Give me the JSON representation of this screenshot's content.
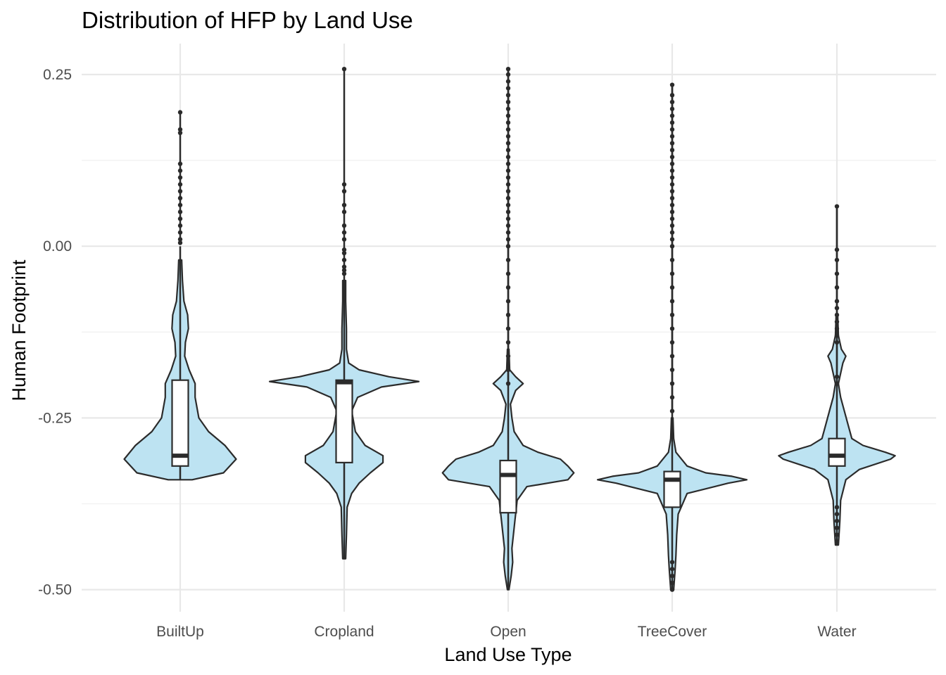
{
  "chart_data": {
    "type": "violin",
    "title": "Distribution of HFP by Land Use",
    "xlabel": "Land Use Type",
    "ylabel": "Human Footprint",
    "categories": [
      "BuiltUp",
      "Cropland",
      "Open",
      "TreeCover",
      "Water"
    ],
    "ylim": [
      -0.53,
      0.3
    ],
    "y_ticks": [
      0.25,
      0.0,
      -0.25,
      -0.5
    ],
    "y_tick_labels": [
      "0.25",
      "0.00",
      "-0.25",
      "-0.50"
    ],
    "grid": true,
    "colors": {
      "fill": "#bde3f2",
      "outline": "#2b2b2b",
      "box_fill": "#ffffff",
      "grid_major": "#e8e8e8",
      "grid_minor": "#f2f2f2"
    },
    "series": [
      {
        "category": "BuiltUp",
        "min": -0.34,
        "q1": -0.32,
        "median": -0.305,
        "q3": -0.195,
        "max": 0.195,
        "upper_whisker": 0.0,
        "outliers": [
          0.195,
          0.17,
          0.165,
          0.12,
          0.11,
          0.1,
          0.09,
          0.08,
          0.07,
          0.06,
          0.05,
          0.04,
          0.03,
          0.02,
          0.01,
          0.005
        ],
        "density": [
          [
            -0.34,
            0.16
          ],
          [
            -0.33,
            0.58
          ],
          [
            -0.31,
            0.75
          ],
          [
            -0.29,
            0.6
          ],
          [
            -0.27,
            0.38
          ],
          [
            -0.25,
            0.25
          ],
          [
            -0.22,
            0.2
          ],
          [
            -0.2,
            0.2
          ],
          [
            -0.18,
            0.12
          ],
          [
            -0.16,
            0.06
          ],
          [
            -0.14,
            0.07
          ],
          [
            -0.12,
            0.11
          ],
          [
            -0.1,
            0.1
          ],
          [
            -0.08,
            0.05
          ],
          [
            -0.05,
            0.03
          ],
          [
            -0.02,
            0.02
          ]
        ]
      },
      {
        "category": "Cropland",
        "min": -0.455,
        "q1": -0.315,
        "median": -0.198,
        "q3": -0.195,
        "max": 0.258,
        "upper_whisker": -0.03,
        "outliers": [
          0.258,
          0.09,
          0.08,
          0.06,
          0.05,
          0.03,
          0.02,
          0.01,
          -0.005,
          -0.01,
          -0.02,
          -0.03,
          -0.035,
          -0.04
        ],
        "density": [
          [
            -0.455,
            0.02
          ],
          [
            -0.42,
            0.03
          ],
          [
            -0.38,
            0.04
          ],
          [
            -0.36,
            0.1
          ],
          [
            -0.345,
            0.2
          ],
          [
            -0.33,
            0.35
          ],
          [
            -0.315,
            0.52
          ],
          [
            -0.305,
            0.52
          ],
          [
            -0.29,
            0.28
          ],
          [
            -0.27,
            0.15
          ],
          [
            -0.24,
            0.1
          ],
          [
            -0.22,
            0.18
          ],
          [
            -0.205,
            0.5
          ],
          [
            -0.197,
            1.0
          ],
          [
            -0.19,
            0.6
          ],
          [
            -0.18,
            0.2
          ],
          [
            -0.17,
            0.06
          ],
          [
            -0.15,
            0.03
          ],
          [
            -0.12,
            0.03
          ],
          [
            -0.08,
            0.02
          ],
          [
            -0.05,
            0.02
          ]
        ]
      },
      {
        "category": "Open",
        "min": -0.5,
        "q1": -0.388,
        "median": -0.333,
        "q3": -0.312,
        "max": 0.258,
        "upper_whisker": 0.258,
        "outliers": [
          0.258,
          0.25,
          0.24,
          0.23,
          0.22,
          0.21,
          0.2,
          0.19,
          0.18,
          0.17,
          0.16,
          0.15,
          0.14,
          0.13,
          0.12,
          0.11,
          0.1,
          0.09,
          0.08,
          0.07,
          0.06,
          0.05,
          0.04,
          0.03,
          0.02,
          0.01,
          0.0,
          -0.02,
          -0.04,
          -0.06,
          -0.08,
          -0.1,
          -0.12,
          -0.14,
          -0.16,
          -0.18,
          -0.2
        ],
        "density": [
          [
            -0.5,
            0.01
          ],
          [
            -0.48,
            0.04
          ],
          [
            -0.46,
            0.06
          ],
          [
            -0.44,
            0.05
          ],
          [
            -0.42,
            0.07
          ],
          [
            -0.4,
            0.09
          ],
          [
            -0.37,
            0.12
          ],
          [
            -0.35,
            0.25
          ],
          [
            -0.34,
            0.8
          ],
          [
            -0.33,
            0.88
          ],
          [
            -0.32,
            0.8
          ],
          [
            -0.31,
            0.7
          ],
          [
            -0.3,
            0.4
          ],
          [
            -0.29,
            0.2
          ],
          [
            -0.27,
            0.08
          ],
          [
            -0.25,
            0.05
          ],
          [
            -0.23,
            0.03
          ],
          [
            -0.21,
            0.1
          ],
          [
            -0.2,
            0.2
          ],
          [
            -0.19,
            0.1
          ],
          [
            -0.18,
            0.02
          ],
          [
            -0.15,
            0.01
          ]
        ]
      },
      {
        "category": "TreeCover",
        "min": -0.5,
        "q1": -0.38,
        "median": -0.34,
        "q3": -0.328,
        "max": 0.235,
        "upper_whisker": 0.235,
        "outliers": [
          0.235,
          0.22,
          0.21,
          0.2,
          0.19,
          0.18,
          0.17,
          0.16,
          0.15,
          0.14,
          0.13,
          0.12,
          0.11,
          0.1,
          0.09,
          0.08,
          0.07,
          0.06,
          0.05,
          0.04,
          0.03,
          0.02,
          0.01,
          0.0,
          -0.02,
          -0.04,
          -0.06,
          -0.08,
          -0.1,
          -0.12,
          -0.14,
          -0.16,
          -0.18,
          -0.2,
          -0.22,
          -0.24,
          -0.46,
          -0.47,
          -0.48,
          -0.49,
          -0.5
        ],
        "density": [
          [
            -0.5,
            0.02
          ],
          [
            -0.47,
            0.04
          ],
          [
            -0.45,
            0.05
          ],
          [
            -0.42,
            0.06
          ],
          [
            -0.39,
            0.08
          ],
          [
            -0.36,
            0.2
          ],
          [
            -0.345,
            0.75
          ],
          [
            -0.34,
            1.0
          ],
          [
            -0.335,
            0.8
          ],
          [
            -0.33,
            0.45
          ],
          [
            -0.32,
            0.2
          ],
          [
            -0.3,
            0.05
          ],
          [
            -0.28,
            0.02
          ],
          [
            -0.25,
            0.01
          ]
        ]
      },
      {
        "category": "Water",
        "min": -0.435,
        "q1": -0.32,
        "median": -0.305,
        "q3": -0.28,
        "max": 0.058,
        "upper_whisker": 0.058,
        "outliers": [
          0.058,
          -0.005,
          -0.02,
          -0.04,
          -0.06,
          -0.08,
          -0.09,
          -0.1,
          -0.11,
          -0.12,
          -0.13,
          -0.14,
          -0.19,
          -0.2,
          -0.38,
          -0.39,
          -0.4,
          -0.41,
          -0.42,
          -0.43
        ],
        "density": [
          [
            -0.435,
            0.02
          ],
          [
            -0.4,
            0.04
          ],
          [
            -0.37,
            0.05
          ],
          [
            -0.34,
            0.12
          ],
          [
            -0.325,
            0.3
          ],
          [
            -0.31,
            0.72
          ],
          [
            -0.305,
            0.78
          ],
          [
            -0.3,
            0.65
          ],
          [
            -0.29,
            0.35
          ],
          [
            -0.28,
            0.2
          ],
          [
            -0.26,
            0.15
          ],
          [
            -0.24,
            0.1
          ],
          [
            -0.22,
            0.05
          ],
          [
            -0.2,
            0.02
          ],
          [
            -0.17,
            0.08
          ],
          [
            -0.16,
            0.12
          ],
          [
            -0.15,
            0.06
          ],
          [
            -0.13,
            0.02
          ],
          [
            -0.1,
            0.01
          ]
        ]
      }
    ]
  }
}
